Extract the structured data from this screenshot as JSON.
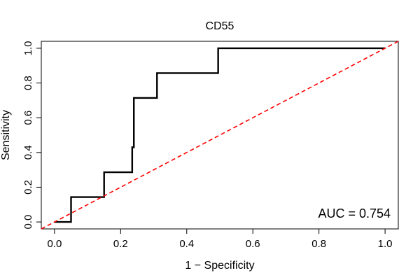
{
  "chart_data": {
    "type": "line",
    "title": "CD55",
    "xlabel": "1 − Specificity",
    "ylabel": "Sensitivity",
    "xlim": [
      -0.04,
      1.04
    ],
    "ylim": [
      -0.04,
      1.04
    ],
    "x_ticks": [
      "0.0",
      "0.2",
      "0.4",
      "0.6",
      "0.8",
      "1.0"
    ],
    "y_ticks": [
      "0.0",
      "0.2",
      "0.4",
      "0.6",
      "0.8",
      "1.0"
    ],
    "grid": false,
    "series": [
      {
        "color": "#000000",
        "style": "solid",
        "points": [
          [
            0.0,
            0.0
          ],
          [
            0.05,
            0.0
          ],
          [
            0.05,
            0.143
          ],
          [
            0.15,
            0.143
          ],
          [
            0.15,
            0.286
          ],
          [
            0.235,
            0.286
          ],
          [
            0.235,
            0.43
          ],
          [
            0.24,
            0.43
          ],
          [
            0.24,
            0.714
          ],
          [
            0.31,
            0.714
          ],
          [
            0.31,
            0.857
          ],
          [
            0.495,
            0.857
          ],
          [
            0.495,
            1.0
          ],
          [
            1.0,
            1.0
          ]
        ]
      },
      {
        "color": "#ff0000",
        "style": "dashed",
        "points": [
          [
            -0.04,
            -0.04
          ],
          [
            1.04,
            1.04
          ]
        ]
      }
    ],
    "annotation": "AUC = 0.754"
  }
}
